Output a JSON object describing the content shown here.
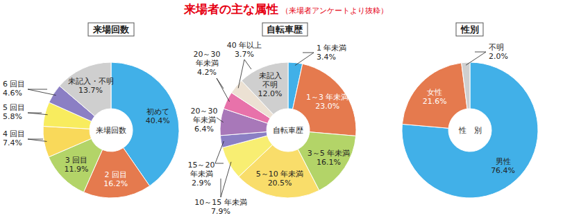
{
  "title": "来場者の主な属性",
  "subtitle": "（来場者アンケートより抜粋）",
  "chart_data": [
    {
      "type": "pie",
      "title": "来場回数",
      "center_label": "来場回数",
      "categories": [
        "初めて",
        "2 回目",
        "3 回目",
        "4 回目",
        "5 回目",
        "6 回目",
        "未記入・不明"
      ],
      "values": [
        40.4,
        16.2,
        11.9,
        7.4,
        5.8,
        4.6,
        13.7
      ],
      "value_labels": [
        "40.4%",
        "16.2%",
        "11.9%",
        "7.4%",
        "5.8%",
        "4.6%",
        "13.7%"
      ],
      "colors": [
        "#41b0e8",
        "#e57a4e",
        "#b3d468",
        "#f9d95a",
        "#f8ec5e",
        "#8b7fc4",
        "#cfcfcf"
      ],
      "data_labels": true
    },
    {
      "type": "pie",
      "title": "自転車歴",
      "center_label": "自転車歴",
      "categories": [
        "1 年未満",
        "1～3 年未満",
        "3～5 年未満",
        "5～10 年未満",
        "10～15 年未満",
        "15～20\n年未満",
        "20～30\n年未満",
        "20～30\n年未満",
        "40 年以上",
        "未記入\n不明"
      ],
      "values": [
        3.4,
        23.0,
        16.1,
        20.5,
        7.9,
        2.9,
        6.4,
        4.2,
        3.7,
        12.0
      ],
      "value_labels": [
        "3.4%",
        "23.0%",
        "16.1%",
        "20.5%",
        "7.9%",
        "2.9%",
        "6.4%",
        "4.2%",
        "3.7%",
        "12.0%"
      ],
      "colors": [
        "#41b0e8",
        "#e57a4e",
        "#b3d468",
        "#f9dd6a",
        "#f8ee72",
        "#8b7fc4",
        "#a878b9",
        "#e872aa",
        "#ece1d3",
        "#cfcfcf"
      ],
      "data_labels": true
    },
    {
      "type": "pie",
      "title": "性別",
      "center_label": "性　別",
      "categories": [
        "男性",
        "女性",
        "不明"
      ],
      "values": [
        76.4,
        21.6,
        2.0
      ],
      "value_labels": [
        "76.4%",
        "21.6%",
        "2.0%"
      ],
      "colors": [
        "#41b0e8",
        "#e57a4e",
        "#cfcfcf"
      ],
      "data_labels": true
    }
  ]
}
